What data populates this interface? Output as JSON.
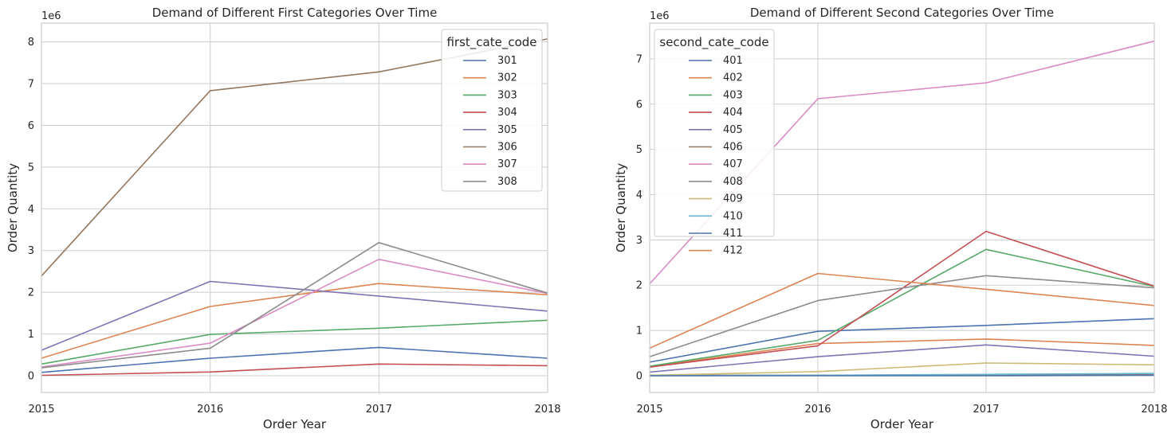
{
  "chart_data": [
    {
      "type": "line",
      "title": "Demand of Different First Categories Over Time",
      "xlabel": "Order Year",
      "ylabel": "Order Quantity",
      "y_offset_label": "1e6",
      "x": [
        2015,
        2016,
        2017,
        2018
      ],
      "x_tick_labels": [
        "2015",
        "2016",
        "2017",
        "2018"
      ],
      "xlim": [
        2015,
        2018
      ],
      "ylim": [
        -0.4,
        8.45
      ],
      "y_ticks": [
        0,
        1,
        2,
        3,
        4,
        5,
        6,
        7,
        8
      ],
      "y_tick_labels": [
        "0",
        "1",
        "2",
        "3",
        "4",
        "5",
        "6",
        "7",
        "8"
      ],
      "grid": true,
      "legend": {
        "title": "first_cate_code",
        "placement": "upper right"
      },
      "series": [
        {
          "name": "301",
          "color": "#4c72b0",
          "values": [
            0.08,
            0.42,
            0.68,
            0.42
          ]
        },
        {
          "name": "302",
          "color": "#dd8452",
          "values": [
            0.42,
            1.66,
            2.21,
            1.94
          ]
        },
        {
          "name": "303",
          "color": "#55a868",
          "values": [
            0.28,
            0.99,
            1.14,
            1.33
          ]
        },
        {
          "name": "304",
          "color": "#c44e52",
          "values": [
            0.01,
            0.09,
            0.28,
            0.24
          ]
        },
        {
          "name": "305",
          "color": "#8172b3",
          "values": [
            0.61,
            2.26,
            1.91,
            1.55
          ]
        },
        {
          "name": "306",
          "color": "#937860",
          "values": [
            2.39,
            6.83,
            7.28,
            8.07
          ]
        },
        {
          "name": "307",
          "color": "#da8bc3",
          "values": [
            0.21,
            0.78,
            2.79,
            1.97
          ]
        },
        {
          "name": "308",
          "color": "#8c8c8c",
          "values": [
            0.19,
            0.66,
            3.19,
            1.98
          ]
        }
      ]
    },
    {
      "type": "line",
      "title": "Demand of Different Second Categories Over Time",
      "xlabel": "Order Year",
      "ylabel": "Order Quantity",
      "y_offset_label": "1e6",
      "x": [
        2015,
        2016,
        2017,
        2018
      ],
      "x_tick_labels": [
        "2015",
        "2016",
        "2017",
        "2018"
      ],
      "xlim": [
        2015,
        2018
      ],
      "ylim": [
        -0.37,
        7.79
      ],
      "y_ticks": [
        0,
        1,
        2,
        3,
        4,
        5,
        6,
        7
      ],
      "y_tick_labels": [
        "0",
        "1",
        "2",
        "3",
        "4",
        "5",
        "6",
        "7"
      ],
      "grid": true,
      "legend": {
        "title": "second_cate_code",
        "placement": "upper left"
      },
      "series": [
        {
          "name": "401",
          "color": "#4c72b0",
          "values": [
            0.3,
            0.98,
            1.11,
            1.26
          ]
        },
        {
          "name": "402",
          "color": "#dd8452",
          "values": [
            0.2,
            0.71,
            0.81,
            0.67
          ]
        },
        {
          "name": "403",
          "color": "#55a868",
          "values": [
            0.21,
            0.78,
            2.79,
            1.97
          ]
        },
        {
          "name": "404",
          "color": "#c44e52",
          "values": [
            0.19,
            0.66,
            3.19,
            1.98
          ]
        },
        {
          "name": "405",
          "color": "#8172b3",
          "values": [
            0.08,
            0.42,
            0.68,
            0.43
          ]
        },
        {
          "name": "406",
          "color": "#937860",
          "values": [
            0.01,
            0.01,
            0.02,
            0.02
          ]
        },
        {
          "name": "407",
          "color": "#da8bc3",
          "values": [
            2.03,
            6.12,
            6.47,
            7.39
          ]
        },
        {
          "name": "408",
          "color": "#8c8c8c",
          "values": [
            0.42,
            1.66,
            2.21,
            1.94
          ]
        },
        {
          "name": "409",
          "color": "#ccb974",
          "values": [
            0.01,
            0.09,
            0.28,
            0.24
          ]
        },
        {
          "name": "410",
          "color": "#64b5cd",
          "values": [
            0.0,
            0.01,
            0.03,
            0.05
          ]
        },
        {
          "name": "411",
          "color": "#4c72b0",
          "values": [
            0.0,
            0.0,
            0.0,
            0.01
          ]
        },
        {
          "name": "412",
          "color": "#dd8452",
          "values": [
            0.61,
            2.26,
            1.91,
            1.55
          ]
        }
      ]
    }
  ]
}
